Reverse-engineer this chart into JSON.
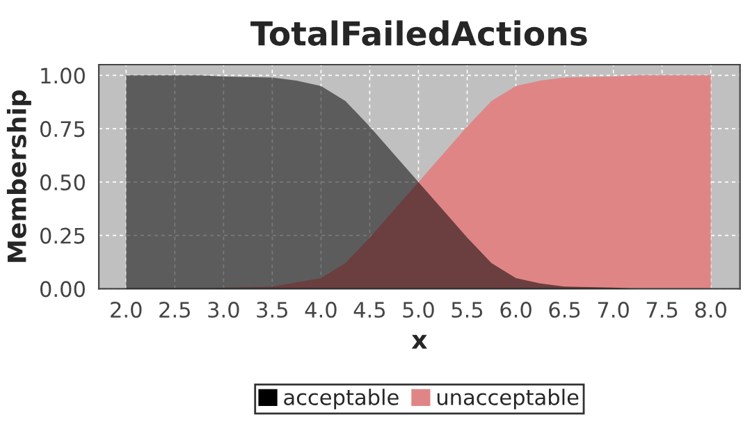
{
  "chart_data": {
    "type": "area",
    "title": "TotalFailedActions",
    "xlabel": "x",
    "ylabel": "Membership",
    "series": [
      {
        "name": "acceptable",
        "color": "#000000",
        "x": [
          2.0,
          2.75,
          3.0,
          3.5,
          3.75,
          4.0,
          4.25,
          4.5,
          4.75,
          5.0,
          5.25,
          5.5,
          5.75,
          6.0,
          6.25,
          6.5,
          7.0,
          7.25
        ],
        "values": [
          1.0,
          1.0,
          0.995,
          0.99,
          0.975,
          0.95,
          0.88,
          0.76,
          0.63,
          0.5,
          0.37,
          0.24,
          0.12,
          0.05,
          0.025,
          0.01,
          0.005,
          0.0
        ]
      },
      {
        "name": "unacceptable",
        "color": "#e08585",
        "x": [
          2.75,
          3.0,
          3.5,
          4.0,
          4.25,
          4.5,
          4.75,
          5.0,
          5.25,
          5.5,
          5.75,
          6.0,
          6.25,
          6.5,
          7.0,
          7.25,
          8.0
        ],
        "values": [
          0.0,
          0.005,
          0.01,
          0.05,
          0.12,
          0.24,
          0.37,
          0.5,
          0.63,
          0.76,
          0.88,
          0.95,
          0.975,
          0.99,
          0.995,
          1.0,
          1.0
        ]
      }
    ],
    "xlim": [
      1.72,
      8.3
    ],
    "ylim": [
      0,
      1.05
    ],
    "xticks": [
      {
        "value": 2.0,
        "label": "2.0"
      },
      {
        "value": 2.5,
        "label": "2.5"
      },
      {
        "value": 3.0,
        "label": "3.0"
      },
      {
        "value": 3.5,
        "label": "3.5"
      },
      {
        "value": 4.0,
        "label": "4.0"
      },
      {
        "value": 4.5,
        "label": "4.5"
      },
      {
        "value": 5.0,
        "label": "5.0"
      },
      {
        "value": 5.5,
        "label": "5.5"
      },
      {
        "value": 6.0,
        "label": "6.0"
      },
      {
        "value": 6.5,
        "label": "6.5"
      },
      {
        "value": 7.0,
        "label": "7.0"
      },
      {
        "value": 7.5,
        "label": "7.5"
      },
      {
        "value": 8.0,
        "label": "8.0"
      }
    ],
    "yticks": [
      {
        "value": 0,
        "label": "0.00"
      },
      {
        "value": 0.25,
        "label": "0.25"
      },
      {
        "value": 0.5,
        "label": "0.50"
      },
      {
        "value": 0.75,
        "label": "0.75"
      },
      {
        "value": 1.0,
        "label": "1.00"
      }
    ],
    "grid": true,
    "legend": "bottom"
  }
}
